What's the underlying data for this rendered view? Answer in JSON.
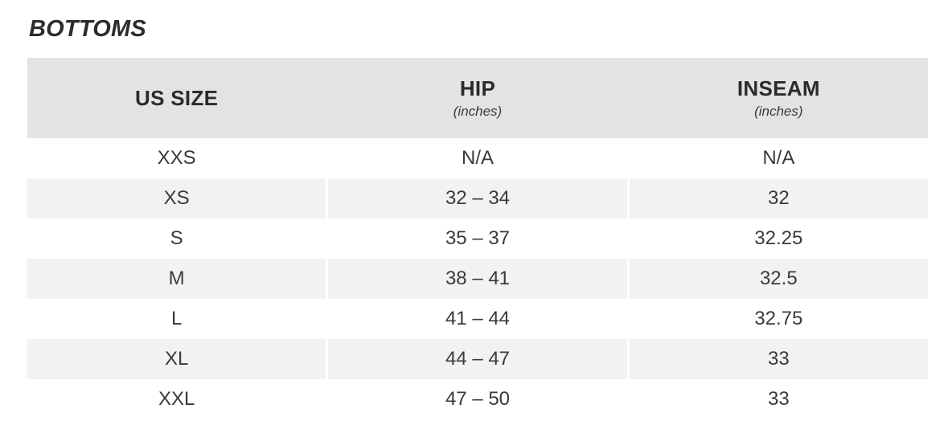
{
  "title": "BOTTOMS",
  "colors": {
    "page_bg": "#ffffff",
    "header_bg": "#e3e3e3",
    "stripe_bg": "#f2f2f3",
    "heading_text": "#2b2b2b",
    "body_text": "#3a3a3a"
  },
  "chart_data": {
    "type": "table",
    "title": "BOTTOMS",
    "layout": {
      "zebra_striping": true,
      "striped_rows": [
        "XS",
        "M",
        "XL"
      ],
      "columns_equal_width": true
    },
    "columns": [
      {
        "label": "US SIZE",
        "unit": ""
      },
      {
        "label": "HIP",
        "unit": "(inches)"
      },
      {
        "label": "INSEAM",
        "unit": "(inches)"
      }
    ],
    "rows": [
      {
        "size": "XXS",
        "hip": "N/A",
        "inseam": "N/A"
      },
      {
        "size": "XS",
        "hip": "32 – 34",
        "inseam": "32"
      },
      {
        "size": "S",
        "hip": "35 – 37",
        "inseam": "32.25"
      },
      {
        "size": "M",
        "hip": "38 – 41",
        "inseam": "32.5"
      },
      {
        "size": "L",
        "hip": "41 – 44",
        "inseam": "32.75"
      },
      {
        "size": "XL",
        "hip": "44 – 47",
        "inseam": "33"
      },
      {
        "size": "XXL",
        "hip": "47 – 50",
        "inseam": "33"
      }
    ]
  }
}
